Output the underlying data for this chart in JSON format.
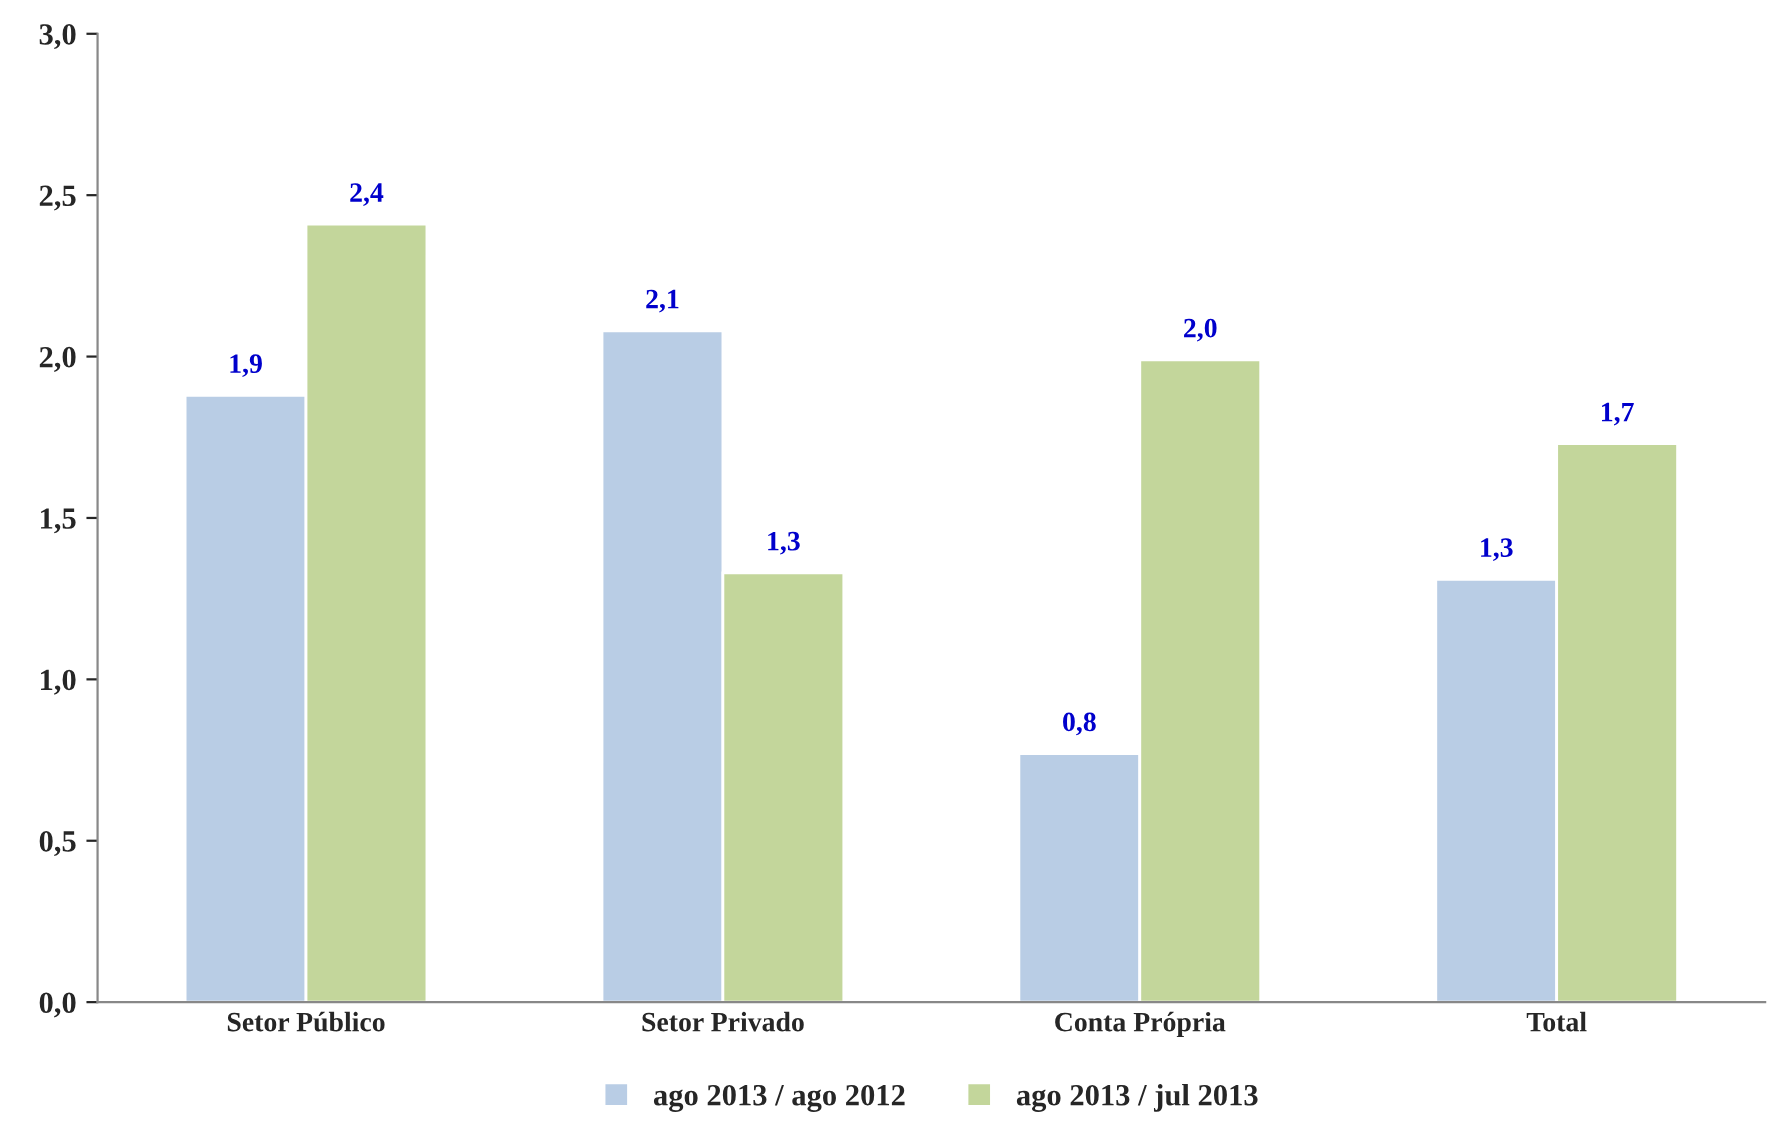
{
  "chart_data": {
    "type": "bar",
    "categories": [
      "Setor Público",
      "Setor Privado",
      "Conta Própria",
      "Total"
    ],
    "series": [
      {
        "name": "ago 2013 / ago 2012",
        "color": "#b9cde5",
        "values": [
          1.88,
          2.08,
          0.77,
          1.31
        ],
        "value_labels": [
          "1,9",
          "2,1",
          "0,8",
          "1,3"
        ]
      },
      {
        "name": "ago 2013 / jul 2013",
        "color": "#c3d69b",
        "values": [
          2.41,
          1.33,
          1.99,
          1.73
        ],
        "value_labels": [
          "2,4",
          "1,3",
          "2,0",
          "1,7"
        ]
      }
    ],
    "ylim": [
      0,
      3
    ],
    "yticks": [
      {
        "value": 0,
        "label": "0,0"
      },
      {
        "value": 0.5,
        "label": "0,5"
      },
      {
        "value": 1,
        "label": "1,0"
      },
      {
        "value": 1.5,
        "label": "1,5"
      },
      {
        "value": 2,
        "label": "2,0"
      },
      {
        "value": 2.5,
        "label": "2,5"
      },
      {
        "value": 3,
        "label": "3,0"
      }
    ],
    "grid": false,
    "legend": "bottom"
  }
}
